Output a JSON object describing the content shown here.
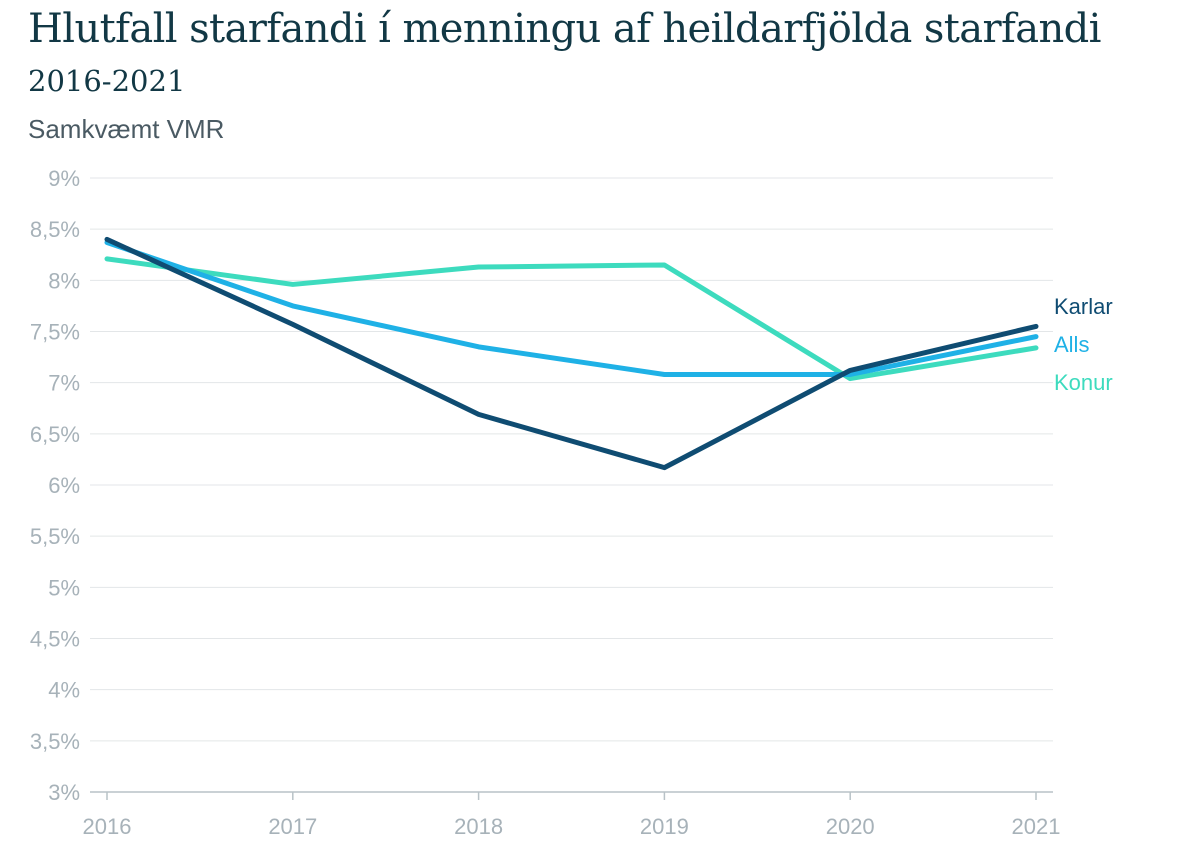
{
  "header": {
    "title": "Hlutfall starfandi í menningu af heildarfjölda starfandi",
    "years": "2016-2021",
    "source": "Samkvæmt VMR"
  },
  "chart_data": {
    "type": "line",
    "title": "Hlutfall starfandi í menningu af heildarfjölda starfandi",
    "subtitle": "2016-2021",
    "note": "Samkvæmt VMR",
    "xlabel": "",
    "ylabel": "",
    "x": [
      "2016",
      "2017",
      "2018",
      "2019",
      "2020",
      "2021"
    ],
    "ylim": [
      3,
      9
    ],
    "yticks": [
      3,
      3.5,
      4,
      4.5,
      5,
      5.5,
      6,
      6.5,
      7,
      7.5,
      8,
      8.5,
      9
    ],
    "ytick_labels": [
      "3%",
      "3,5%",
      "4%",
      "4,5%",
      "5%",
      "5,5%",
      "6%",
      "6,5%",
      "7%",
      "7,5%",
      "8%",
      "8,5%",
      "9%"
    ],
    "grid": true,
    "legend": "direct-labels-right",
    "series": [
      {
        "name": "Karlar",
        "color": "#0f4c72",
        "values": [
          8.4,
          7.57,
          6.69,
          6.17,
          7.12,
          7.55
        ]
      },
      {
        "name": "Alls",
        "color": "#1fb1e6",
        "values": [
          8.37,
          7.75,
          7.35,
          7.08,
          7.08,
          7.45
        ]
      },
      {
        "name": "Konur",
        "color": "#3ddbbe",
        "values": [
          8.21,
          7.96,
          8.13,
          8.15,
          7.04,
          7.34
        ]
      }
    ]
  }
}
